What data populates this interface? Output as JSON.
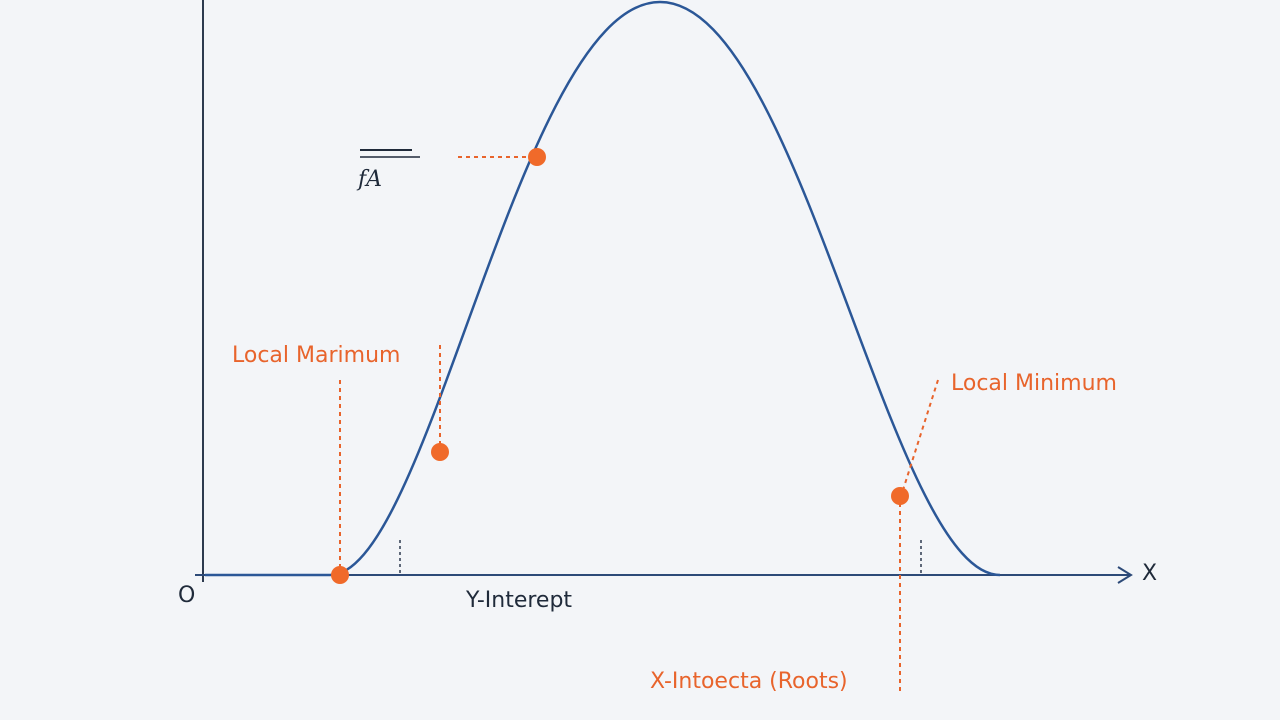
{
  "labels": {
    "local_max": "Local Marimum",
    "local_min": "Local Minimum",
    "y_intercept": "Y-Interept",
    "x_intercepts": "X-Intoecta (Roots)",
    "x_axis": "X",
    "origin": "O",
    "function": "fA"
  }
}
